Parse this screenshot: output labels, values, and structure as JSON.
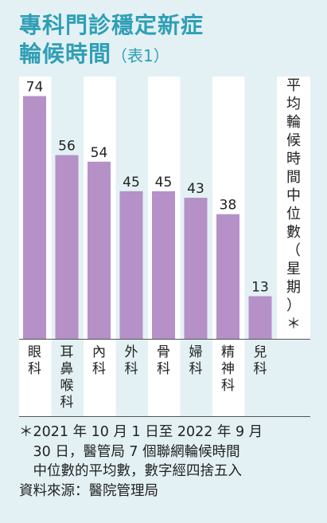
{
  "title": {
    "line1": "專科門診穩定新症",
    "line2": "輪候時間",
    "tag": "（表1）"
  },
  "chart_data": {
    "type": "bar",
    "categories": [
      "眼科",
      "耳鼻喉科",
      "內科",
      "外科",
      "骨科",
      "婦科",
      "精神科",
      "兒科"
    ],
    "values": [
      74,
      56,
      54,
      45,
      45,
      43,
      38,
      13
    ],
    "ylabel": "平均輪候時間中位數（星期）＊",
    "ylim": [
      0,
      90
    ],
    "grid": false,
    "bar_color": "#b591c8",
    "column_bg": "#ffffff"
  },
  "footnote": "＊2021 年 10 月 1 日至 2022 年 9 月\n　30 日，醫管局 7 個聯網輪候時間\n　中位數的平均數，數字經四捨五入",
  "source": "資料來源：醫院管理局"
}
